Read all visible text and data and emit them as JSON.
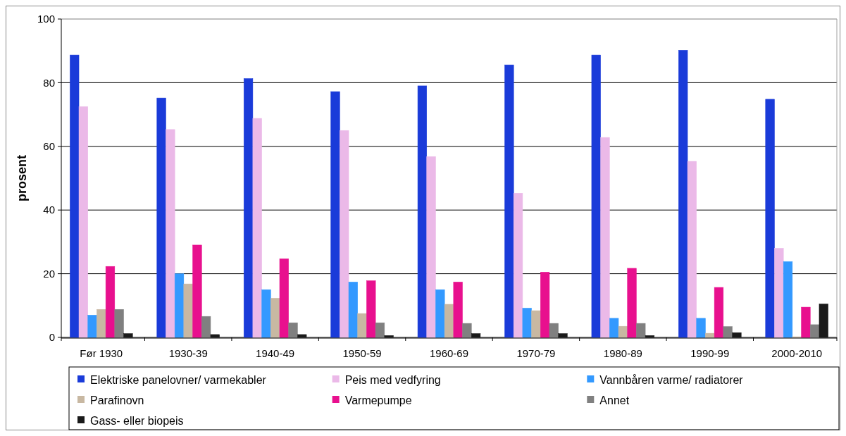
{
  "chart_data": {
    "type": "bar",
    "ylabel": "prosent",
    "categories": [
      "Før 1930",
      "1930-39",
      "1940-49",
      "1950-59",
      "1960-69",
      "1970-79",
      "1980-89",
      "1990-99",
      "2000-2010"
    ],
    "ylim": [
      0,
      100
    ],
    "yticks": [
      0,
      20,
      40,
      60,
      80,
      100
    ],
    "grid": "y",
    "legend": "bottom",
    "series": [
      {
        "name": "Elektriske panelovner/ varmekabler",
        "color": "#1a3bd9",
        "values": [
          88.7,
          75.2,
          81.3,
          77.2,
          79,
          85.6,
          88.7,
          90.2,
          74.8
        ]
      },
      {
        "name": "Peis med vedfyring",
        "color": "#ebb9e8",
        "values": [
          72.5,
          65.3,
          68.8,
          65,
          56.8,
          45.3,
          62.8,
          55.3,
          28
        ]
      },
      {
        "name": "Vannbåren varme/ radiatorer",
        "color": "#3399ff",
        "values": [
          7,
          20,
          15,
          17.4,
          15,
          9.2,
          6,
          6,
          23.8
        ]
      },
      {
        "name": "Parafinovn",
        "color": "#c8b8a2",
        "values": [
          8.8,
          16.8,
          12.3,
          7.5,
          10.4,
          8.4,
          3.5,
          1.3,
          0.2
        ]
      },
      {
        "name": "Varmepumpe",
        "color": "#e8108e",
        "values": [
          22.3,
          29,
          24.7,
          17.8,
          17.4,
          20.5,
          21.7,
          15.7,
          9.5
        ]
      },
      {
        "name": "Annet",
        "color": "#808080",
        "values": [
          8.8,
          6.6,
          4.6,
          4.6,
          4.4,
          4.4,
          4.4,
          3.4,
          4
        ]
      },
      {
        "name": "Gass- eller biopeis",
        "color": "#1a1a1a",
        "values": [
          1.2,
          0.9,
          0.9,
          0.6,
          1.2,
          1.2,
          0.6,
          1.5,
          10.5
        ]
      }
    ]
  }
}
